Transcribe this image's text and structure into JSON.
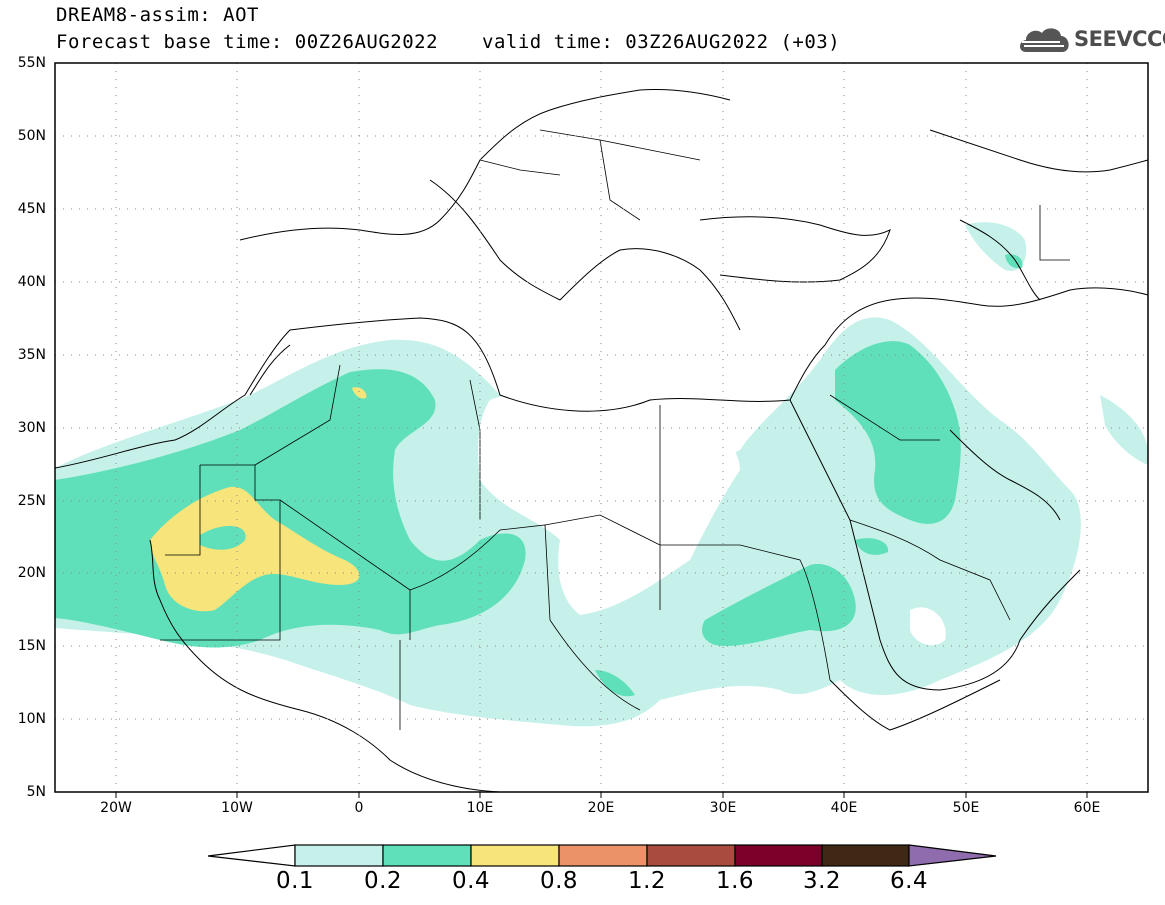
{
  "header": {
    "title_line1": "DREAM8-assim: AOT",
    "title_line2": "Forecast base time: 00Z26AUG2022",
    "valid_time": "valid time: 03Z26AUG2022 (+03)",
    "logo_text": "SEEVCCC"
  },
  "map": {
    "lat_labels": [
      "55N",
      "50N",
      "45N",
      "40N",
      "35N",
      "30N",
      "25N",
      "20N",
      "15N",
      "10N",
      "5N"
    ],
    "lon_labels": [
      "20W",
      "10W",
      "0",
      "10E",
      "20E",
      "30E",
      "40E",
      "50E",
      "60E"
    ],
    "extent": {
      "lon": [
        -25,
        65
      ],
      "lat": [
        5,
        55
      ]
    }
  },
  "colorbar": {
    "levels": [
      "0.1",
      "0.2",
      "0.4",
      "0.8",
      "1.2",
      "1.6",
      "3.2",
      "6.4"
    ],
    "colors": [
      "#ffffff",
      "#c6f1ea",
      "#5fe0ba",
      "#f7e47a",
      "#eb9268",
      "#a94b3e",
      "#7a0029",
      "#3f2816",
      "#8f6cae"
    ]
  }
}
